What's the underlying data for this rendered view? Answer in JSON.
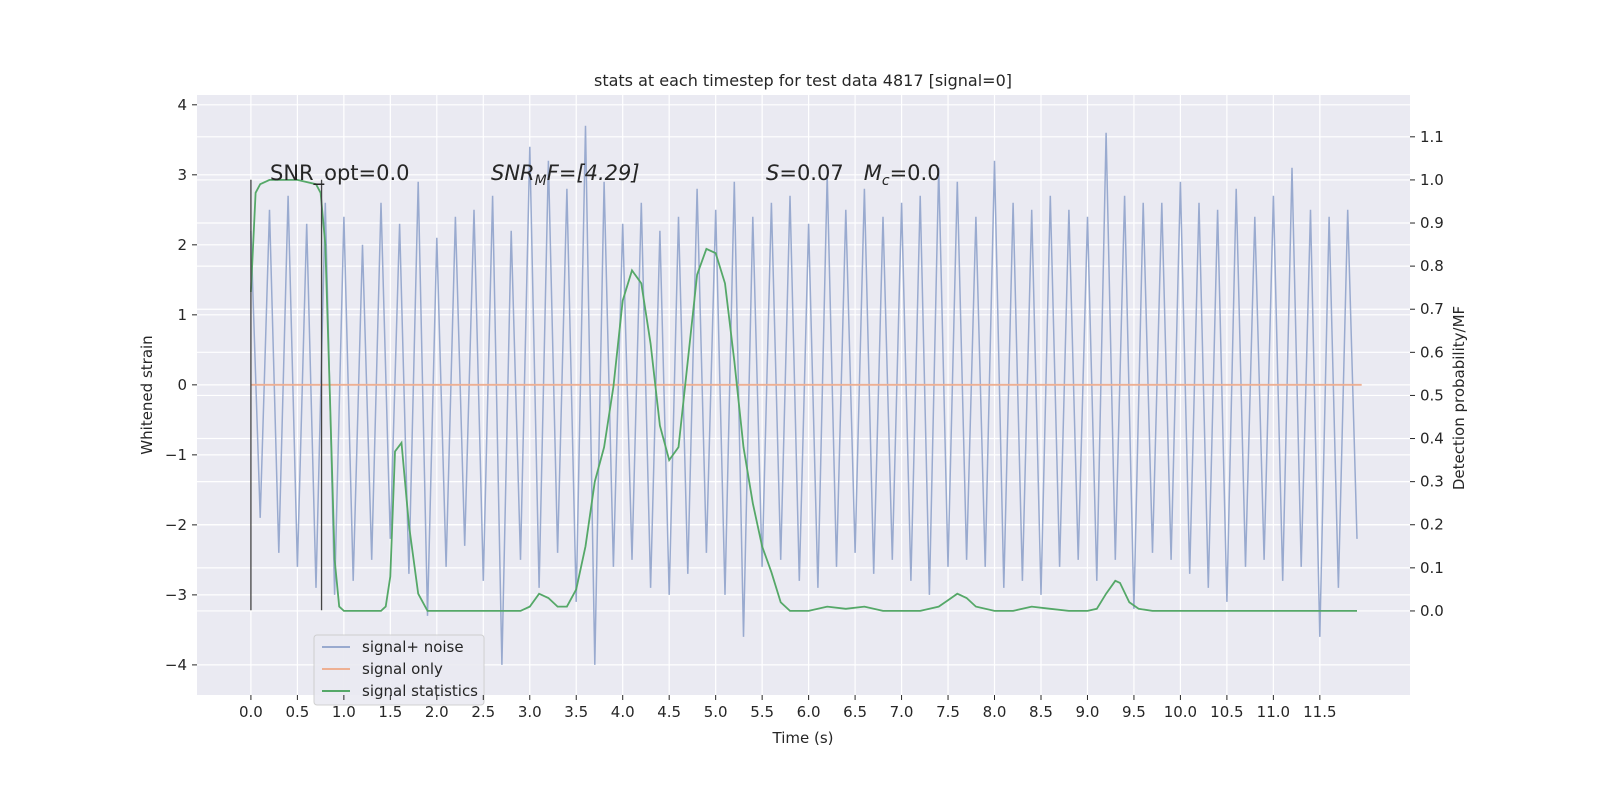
{
  "chart_data": {
    "type": "line",
    "title": "stats at each timestep for test data 4817 [signal=0]",
    "xlabel": "Time (s)",
    "ylabel": "Whitened strain",
    "y2label": "Detection probability/MF",
    "xlim": [
      -0.58,
      12.47
    ],
    "ylim": [
      -4.43,
      4.14
    ],
    "y2lim": [
      -0.195,
      1.197
    ],
    "xticks": [
      {
        "value": 0,
        "label": "0.0"
      },
      {
        "value": 0.5,
        "label": "0.5"
      },
      {
        "value": 1,
        "label": "1.0"
      },
      {
        "value": 1.5,
        "label": "1.5"
      },
      {
        "value": 2,
        "label": "2.0"
      },
      {
        "value": 2.5,
        "label": "2.5"
      },
      {
        "value": 3,
        "label": "3.0"
      },
      {
        "value": 3.5,
        "label": "3.5"
      },
      {
        "value": 4,
        "label": "4.0"
      },
      {
        "value": 4.5,
        "label": "4.5"
      },
      {
        "value": 5,
        "label": "5.0"
      },
      {
        "value": 5.5,
        "label": "5.5"
      },
      {
        "value": 6,
        "label": "6.0"
      },
      {
        "value": 6.5,
        "label": "6.5"
      },
      {
        "value": 7,
        "label": "7.0"
      },
      {
        "value": 7.5,
        "label": "7.5"
      },
      {
        "value": 8,
        "label": "8.0"
      },
      {
        "value": 8.5,
        "label": "8.5"
      },
      {
        "value": 9,
        "label": "9.0"
      },
      {
        "value": 9.5,
        "label": "9.5"
      },
      {
        "value": 10,
        "label": "10.0"
      },
      {
        "value": 10.5,
        "label": "10.5"
      },
      {
        "value": 11,
        "label": "11.0"
      },
      {
        "value": 11.5,
        "label": "11.5"
      }
    ],
    "yticks": [
      {
        "value": -4,
        "label": "−4"
      },
      {
        "value": -3,
        "label": "−3"
      },
      {
        "value": -2,
        "label": "−2"
      },
      {
        "value": -1,
        "label": "−1"
      },
      0,
      1,
      2,
      3,
      4
    ],
    "y2ticks": [
      {
        "value": 0,
        "label": "0.0"
      },
      {
        "value": 0.1,
        "label": "0.1"
      },
      {
        "value": 0.2,
        "label": "0.2"
      },
      {
        "value": 0.3,
        "label": "0.3"
      },
      {
        "value": 0.4,
        "label": "0.4"
      },
      {
        "value": 0.5,
        "label": "0.5"
      },
      {
        "value": 0.6,
        "label": "0.6"
      },
      {
        "value": 0.7,
        "label": "0.7"
      },
      {
        "value": 0.8,
        "label": "0.8"
      },
      {
        "value": 0.9,
        "label": "0.9"
      },
      {
        "value": 1,
        "label": "1.0"
      },
      {
        "value": 1.1,
        "label": "1.1"
      }
    ],
    "grid": true,
    "legend": "lower left",
    "series": [
      {
        "name": "signal+ noise",
        "color": "#99aacf",
        "x": [
          0,
          0.1,
          0.2,
          0.3,
          0.4,
          0.5,
          0.6,
          0.7,
          0.8,
          0.9,
          1,
          1.1,
          1.2,
          1.3,
          1.4,
          1.5,
          1.6,
          1.7,
          1.8,
          1.9,
          2,
          2.1,
          2.2,
          2.3,
          2.4,
          2.5,
          2.6,
          2.7,
          2.8,
          2.9,
          3,
          3.1,
          3.2,
          3.3,
          3.4,
          3.5,
          3.6,
          3.7,
          3.8,
          3.9,
          4,
          4.1,
          4.2,
          4.3,
          4.4,
          4.5,
          4.6,
          4.7,
          4.8,
          4.9,
          5,
          5.1,
          5.2,
          5.3,
          5.4,
          5.5,
          5.6,
          5.7,
          5.8,
          5.9,
          6,
          6.1,
          6.2,
          6.3,
          6.4,
          6.5,
          6.6,
          6.7,
          6.8,
          6.9,
          7,
          7.1,
          7.2,
          7.3,
          7.4,
          7.5,
          7.6,
          7.7,
          7.8,
          7.9,
          8,
          8.1,
          8.2,
          8.3,
          8.4,
          8.5,
          8.6,
          8.7,
          8.8,
          8.9,
          9,
          9.1,
          9.2,
          9.3,
          9.4,
          9.5,
          9.6,
          9.7,
          9.8,
          9.9,
          10,
          10.1,
          10.2,
          10.3,
          10.4,
          10.5,
          10.6,
          10.7,
          10.8,
          10.9,
          11,
          11.1,
          11.2,
          11.3,
          11.4,
          11.5,
          11.6,
          11.7,
          11.8,
          11.9
        ],
        "values": [
          2.2,
          -1.9,
          2.5,
          -2.4,
          2.7,
          -2.6,
          2.3,
          -2.9,
          2.6,
          -3.0,
          2.4,
          -2.8,
          2.0,
          -2.5,
          2.6,
          -2.2,
          2.3,
          -2.7,
          2.9,
          -3.3,
          2.1,
          -2.6,
          2.4,
          -2.3,
          2.5,
          -2.8,
          2.7,
          -4.0,
          2.2,
          -2.5,
          3.4,
          -2.9,
          3.2,
          -2.4,
          2.8,
          -3.1,
          3.7,
          -4.0,
          2.9,
          -2.6,
          2.3,
          -2.5,
          2.6,
          -2.9,
          2.2,
          -3.0,
          2.4,
          -2.7,
          2.8,
          -2.4,
          2.5,
          -3.0,
          2.9,
          -3.6,
          2.4,
          -2.6,
          2.6,
          -2.5,
          2.7,
          -2.8,
          2.3,
          -2.9,
          3.0,
          -2.6,
          2.5,
          -2.4,
          2.8,
          -2.7,
          2.4,
          -2.5,
          2.6,
          -2.8,
          2.7,
          -3.0,
          3.1,
          -2.6,
          2.9,
          -2.5,
          2.4,
          -2.6,
          3.2,
          -2.9,
          2.6,
          -2.8,
          2.5,
          -3.0,
          2.7,
          -2.6,
          2.5,
          -2.5,
          2.4,
          -2.8,
          3.6,
          -2.5,
          2.7,
          -3.2,
          2.6,
          -2.4,
          2.6,
          -2.5,
          2.9,
          -2.7,
          2.6,
          -2.9,
          2.5,
          -3.1,
          2.8,
          -2.6,
          2.4,
          -2.5,
          2.7,
          -2.8,
          3.1,
          -2.6,
          2.5,
          -3.6,
          2.4,
          -2.9,
          2.5,
          -2.2
        ]
      },
      {
        "name": "signal only",
        "color": "#eeb093",
        "x": [
          0,
          11.95
        ],
        "values": [
          0,
          0
        ]
      },
      {
        "name": "signal statistics",
        "color": "#55a868",
        "axis": "y2",
        "x": [
          0,
          0.05,
          0.1,
          0.2,
          0.5,
          0.7,
          0.75,
          0.8,
          0.85,
          0.9,
          0.95,
          1.0,
          1.4,
          1.45,
          1.5,
          1.55,
          1.62,
          1.7,
          1.8,
          1.9,
          2.0,
          2.9,
          3.0,
          3.1,
          3.2,
          3.3,
          3.4,
          3.5,
          3.6,
          3.7,
          3.8,
          3.9,
          4.0,
          4.1,
          4.2,
          4.3,
          4.4,
          4.5,
          4.6,
          4.7,
          4.8,
          4.9,
          5.0,
          5.1,
          5.2,
          5.3,
          5.4,
          5.5,
          5.6,
          5.7,
          5.8,
          6.0,
          6.2,
          6.4,
          6.6,
          6.8,
          7.0,
          7.2,
          7.4,
          7.5,
          7.6,
          7.7,
          7.8,
          8.0,
          8.2,
          8.4,
          8.6,
          8.8,
          9.0,
          9.1,
          9.2,
          9.3,
          9.35,
          9.45,
          9.55,
          9.7,
          11.0,
          11.9
        ],
        "values": [
          0.74,
          0.97,
          0.99,
          1.0,
          1.0,
          0.99,
          0.97,
          0.85,
          0.5,
          0.12,
          0.01,
          0.0,
          0.0,
          0.01,
          0.08,
          0.37,
          0.39,
          0.2,
          0.04,
          0.0,
          0.0,
          0.0,
          0.01,
          0.04,
          0.03,
          0.01,
          0.01,
          0.05,
          0.15,
          0.3,
          0.38,
          0.52,
          0.72,
          0.79,
          0.76,
          0.62,
          0.43,
          0.35,
          0.38,
          0.58,
          0.78,
          0.84,
          0.83,
          0.76,
          0.58,
          0.38,
          0.25,
          0.15,
          0.09,
          0.02,
          0.0,
          0.0,
          0.01,
          0.005,
          0.01,
          0.0,
          0.0,
          0.0,
          0.01,
          0.025,
          0.04,
          0.03,
          0.01,
          0.0,
          0.0,
          0.01,
          0.005,
          0.0,
          0.0,
          0.005,
          0.04,
          0.07,
          0.065,
          0.02,
          0.005,
          0.0,
          0.0,
          0.0
        ]
      }
    ],
    "vlines": [
      {
        "x": 0,
        "ymin": -3.22,
        "ymax": 2.93
      },
      {
        "x": 0.76,
        "ymin": -3.22,
        "ymax": 2.93
      }
    ],
    "annotations": [
      [
        "SNR_opt=0.0"
      ],
      [
        "SNR",
        "M",
        "F=[4.29]"
      ],
      [
        "S",
        "=0.07   ",
        "M",
        "c",
        "=0.0"
      ]
    ]
  }
}
